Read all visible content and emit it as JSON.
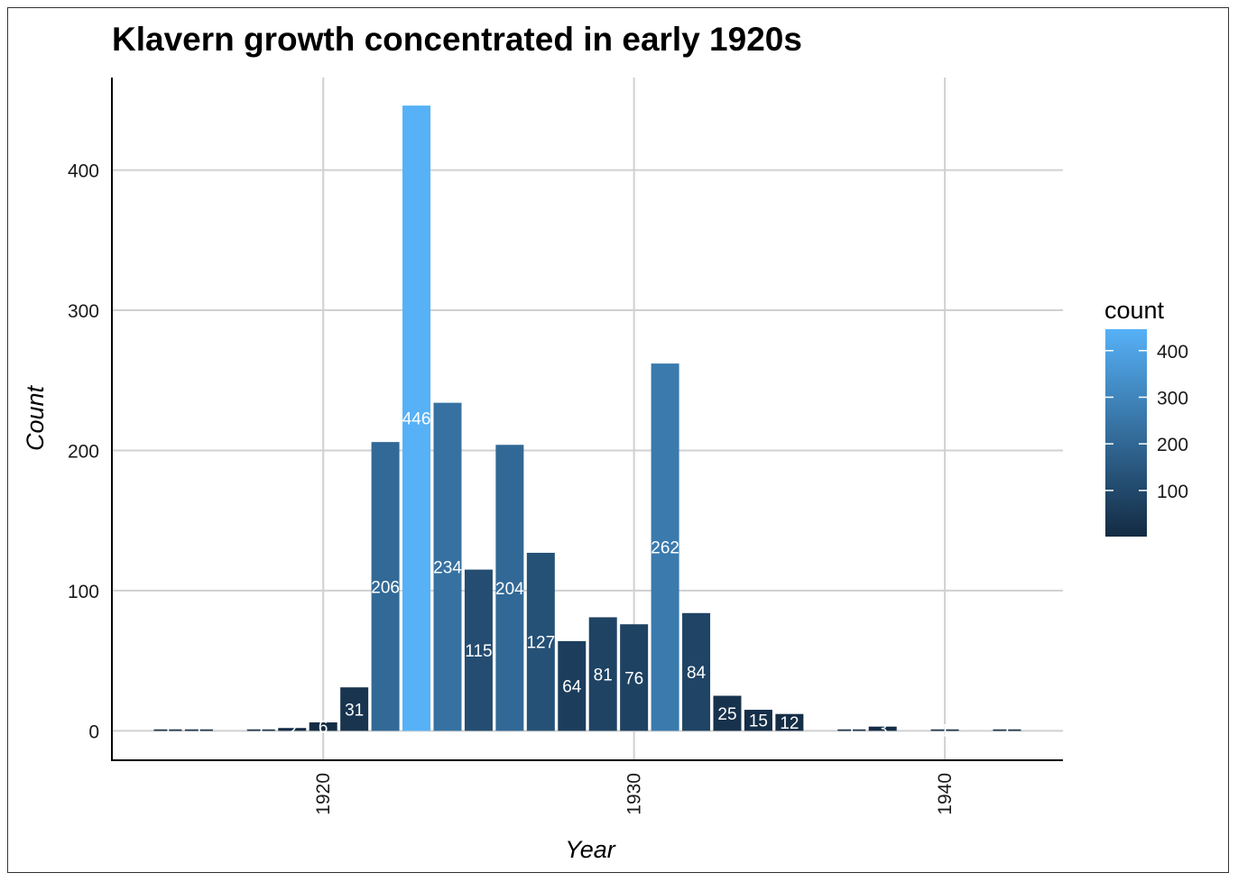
{
  "chart_data": {
    "type": "bar",
    "title": "Klavern growth concentrated in early 1920s",
    "xlabel": "Year",
    "ylabel": "Count",
    "x_ticks": [
      1920,
      1930,
      1940
    ],
    "y_ticks": [
      0,
      100,
      200,
      300,
      400
    ],
    "xlim": [
      1913.2,
      1943.8
    ],
    "ylim": [
      -21,
      466
    ],
    "grid": true,
    "legend": {
      "title": "count",
      "position": "right",
      "ticks": [
        100,
        200,
        300,
        400
      ],
      "range": [
        1,
        446
      ],
      "color_low": "#132B43",
      "color_high": "#56B1F7"
    },
    "bars": [
      {
        "x": 1915,
        "value": 1,
        "label": "1"
      },
      {
        "x": 1916,
        "value": 1,
        "label": "1"
      },
      {
        "x": 1918,
        "value": 1,
        "label": "1"
      },
      {
        "x": 1919,
        "value": 2,
        "label": "2"
      },
      {
        "x": 1920,
        "value": 6,
        "label": "6"
      },
      {
        "x": 1921,
        "value": 31,
        "label": "31"
      },
      {
        "x": 1922,
        "value": 206,
        "label": "206"
      },
      {
        "x": 1923,
        "value": 446,
        "label": "446"
      },
      {
        "x": 1924,
        "value": 234,
        "label": "234"
      },
      {
        "x": 1925,
        "value": 115,
        "label": "115"
      },
      {
        "x": 1926,
        "value": 204,
        "label": "204"
      },
      {
        "x": 1927,
        "value": 127,
        "label": "127"
      },
      {
        "x": 1928,
        "value": 64,
        "label": "64"
      },
      {
        "x": 1929,
        "value": 81,
        "label": "81"
      },
      {
        "x": 1930,
        "value": 76,
        "label": "76"
      },
      {
        "x": 1931,
        "value": 262,
        "label": "262"
      },
      {
        "x": 1932,
        "value": 84,
        "label": "84"
      },
      {
        "x": 1933,
        "value": 25,
        "label": "25"
      },
      {
        "x": 1934,
        "value": 15,
        "label": "15"
      },
      {
        "x": 1935,
        "value": 12,
        "label": "12"
      },
      {
        "x": 1937,
        "value": 1,
        "label": "1"
      },
      {
        "x": 1938,
        "value": 3,
        "label": "3"
      },
      {
        "x": 1940,
        "value": 1,
        "label": "1"
      },
      {
        "x": 1942,
        "value": 1,
        "label": "1"
      }
    ]
  }
}
